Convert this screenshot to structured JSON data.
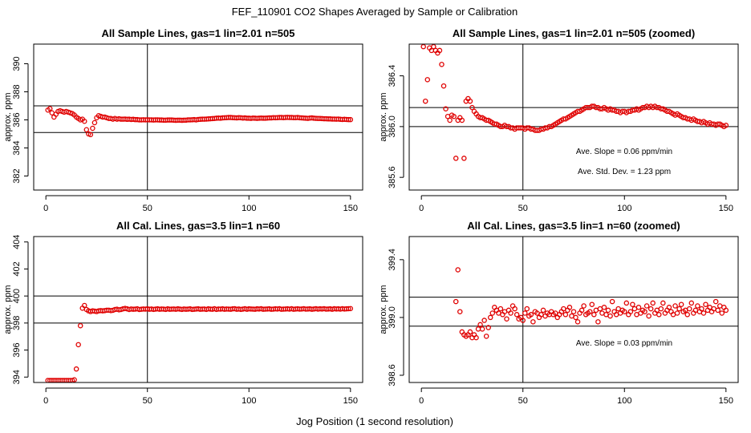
{
  "figure": {
    "title": "FEF_110901  CO2 Shapes Averaged by Sample or Calibration",
    "xlabel": "Jog Position (1 second resolution)"
  },
  "colors": {
    "points": "#e00000",
    "axis": "#000000"
  },
  "chart_data": [
    {
      "type": "scatter",
      "title": "All Sample Lines, gas=1 lin=2.01 n=505",
      "ylabel": "approx. ppm",
      "xlim": [
        -6,
        156
      ],
      "ylim": [
        381,
        391.4
      ],
      "xticks": [
        0,
        50,
        100,
        150
      ],
      "yticks": [
        382,
        384,
        386,
        388,
        390
      ],
      "xtick_labels": [
        "0",
        "50",
        "100",
        "150"
      ],
      "ytick_labels": [
        "382",
        "384",
        "386",
        "388",
        "390"
      ],
      "hlines": [
        387.0,
        385.1
      ],
      "vline": 50,
      "notes": [],
      "x": [
        1,
        2,
        3,
        4,
        5,
        6,
        7,
        8,
        9,
        10,
        11,
        12,
        13,
        14,
        15,
        16,
        17,
        18,
        19,
        20,
        21,
        22,
        23,
        24,
        25,
        26,
        27,
        28,
        29,
        30,
        31,
        32,
        33,
        34,
        35,
        36,
        37,
        38,
        39,
        40,
        41,
        42,
        43,
        44,
        45,
        46,
        47,
        48,
        49,
        50,
        51,
        52,
        53,
        54,
        55,
        56,
        57,
        58,
        59,
        60,
        61,
        62,
        63,
        64,
        65,
        66,
        67,
        68,
        69,
        70,
        71,
        72,
        73,
        74,
        75,
        76,
        77,
        78,
        79,
        80,
        81,
        82,
        83,
        84,
        85,
        86,
        87,
        88,
        89,
        90,
        91,
        92,
        93,
        94,
        95,
        96,
        97,
        98,
        99,
        100,
        101,
        102,
        103,
        104,
        105,
        106,
        107,
        108,
        109,
        110,
        111,
        112,
        113,
        114,
        115,
        116,
        117,
        118,
        119,
        120,
        121,
        122,
        123,
        124,
        125,
        126,
        127,
        128,
        129,
        130,
        131,
        132,
        133,
        134,
        135,
        136,
        137,
        138,
        139,
        140,
        141,
        142,
        143,
        144,
        145,
        146,
        147,
        148,
        149,
        150
      ],
      "y": [
        386.7,
        386.8,
        386.5,
        386.2,
        386.4,
        386.6,
        386.65,
        386.6,
        386.55,
        386.6,
        386.55,
        386.5,
        386.45,
        386.35,
        386.2,
        386.1,
        386.0,
        386.05,
        385.9,
        385.3,
        385.0,
        384.95,
        385.4,
        385.8,
        386.15,
        386.3,
        386.25,
        386.2,
        386.2,
        386.15,
        386.1,
        386.1,
        386.05,
        386.1,
        386.05,
        386.08,
        386.05,
        386.05,
        386.06,
        386.04,
        386.05,
        386.03,
        386.04,
        386.02,
        386.02,
        386.0,
        386.0,
        386.01,
        386.0,
        386.01,
        386.0,
        386.0,
        385.99,
        386.0,
        386.0,
        385.99,
        385.99,
        385.98,
        385.98,
        385.99,
        385.99,
        385.99,
        385.98,
        385.97,
        385.98,
        385.98,
        385.97,
        385.98,
        385.98,
        386.0,
        386.0,
        386.01,
        386.02,
        386.0,
        386.03,
        386.04,
        386.05,
        386.05,
        386.06,
        386.07,
        386.08,
        386.09,
        386.1,
        386.12,
        386.13,
        386.12,
        386.14,
        386.15,
        386.16,
        386.17,
        386.17,
        386.16,
        386.15,
        386.14,
        386.16,
        386.15,
        386.13,
        386.14,
        386.12,
        386.12,
        386.11,
        386.13,
        386.12,
        386.11,
        386.12,
        386.13,
        386.12,
        386.12,
        386.13,
        386.14,
        386.14,
        386.16,
        386.15,
        386.16,
        386.17,
        386.17,
        386.16,
        386.17,
        386.18,
        386.17,
        386.17,
        386.16,
        386.16,
        386.17,
        386.15,
        386.14,
        386.13,
        386.12,
        386.11,
        386.13,
        386.14,
        386.12,
        386.11,
        386.1,
        386.1,
        386.09,
        386.08,
        386.08,
        386.07,
        386.07,
        386.06,
        386.06,
        386.05,
        386.06,
        386.04,
        386.03,
        386.04,
        386.03,
        386.02,
        386.02
      ]
    },
    {
      "type": "scatter",
      "title": "All Sample Lines, gas=1 lin=2.01 n=505 (zoomed)",
      "ylabel": "approx. ppm",
      "xlim": [
        -6,
        156
      ],
      "ylim": [
        385.5,
        386.65
      ],
      "xticks": [
        0,
        50,
        100,
        150
      ],
      "yticks": [
        385.6,
        386.0,
        386.4
      ],
      "xtick_labels": [
        "0",
        "50",
        "100",
        "150"
      ],
      "ytick_labels": [
        "385.6",
        "386.0",
        "386.4"
      ],
      "hlines": [
        386.15,
        386.0
      ],
      "vline": 50,
      "notes": [
        "Ave. Slope =  0.06  ppm/min",
        "Ave. Std. Dev. =  1.23  ppm"
      ],
      "x": [
        1,
        2,
        3,
        4,
        5,
        6,
        7,
        8,
        9,
        10,
        11,
        12,
        13,
        14,
        15,
        16,
        17,
        18,
        19,
        20,
        21,
        22,
        23,
        24,
        25,
        26,
        27,
        28,
        29,
        30,
        31,
        32,
        33,
        34,
        35,
        36,
        37,
        38,
        39,
        40,
        41,
        42,
        43,
        44,
        45,
        46,
        47,
        48,
        49,
        50,
        51,
        52,
        53,
        54,
        55,
        56,
        57,
        58,
        59,
        60,
        61,
        62,
        63,
        64,
        65,
        66,
        67,
        68,
        69,
        70,
        71,
        72,
        73,
        74,
        75,
        76,
        77,
        78,
        79,
        80,
        81,
        82,
        83,
        84,
        85,
        86,
        87,
        88,
        89,
        90,
        91,
        92,
        93,
        94,
        95,
        96,
        97,
        98,
        99,
        100,
        101,
        102,
        103,
        104,
        105,
        106,
        107,
        108,
        109,
        110,
        111,
        112,
        113,
        114,
        115,
        116,
        117,
        118,
        119,
        120,
        121,
        122,
        123,
        124,
        125,
        126,
        127,
        128,
        129,
        130,
        131,
        132,
        133,
        134,
        135,
        136,
        137,
        138,
        139,
        140,
        141,
        142,
        143,
        144,
        145,
        146,
        147,
        148,
        149,
        150
      ],
      "y": [
        386.63,
        386.2,
        386.37,
        386.62,
        386.6,
        386.63,
        386.6,
        386.58,
        386.6,
        386.49,
        386.32,
        386.14,
        386.08,
        386.05,
        386.09,
        386.08,
        385.75,
        386.05,
        386.07,
        386.05,
        385.75,
        386.2,
        386.22,
        386.2,
        386.15,
        386.12,
        386.1,
        386.08,
        386.07,
        386.07,
        386.06,
        386.05,
        386.05,
        386.04,
        386.03,
        386.02,
        386.02,
        386.01,
        386.0,
        386.0,
        386.01,
        386.0,
        386.0,
        385.99,
        385.99,
        385.98,
        385.99,
        385.99,
        385.99,
        385.99,
        385.98,
        385.99,
        385.99,
        385.98,
        385.98,
        385.97,
        385.97,
        385.97,
        385.98,
        385.98,
        385.99,
        385.99,
        386.0,
        386.0,
        386.01,
        386.02,
        386.03,
        386.04,
        386.05,
        386.06,
        386.06,
        386.07,
        386.08,
        386.09,
        386.1,
        386.11,
        386.12,
        386.12,
        386.13,
        386.14,
        386.15,
        386.15,
        386.15,
        386.16,
        386.16,
        386.15,
        386.15,
        386.14,
        386.14,
        386.15,
        386.14,
        386.13,
        386.14,
        386.13,
        386.13,
        386.12,
        386.12,
        386.11,
        386.12,
        386.12,
        386.11,
        386.12,
        386.12,
        386.13,
        386.13,
        386.14,
        386.13,
        386.14,
        386.15,
        386.15,
        386.16,
        386.15,
        386.16,
        386.15,
        386.16,
        386.15,
        386.15,
        386.14,
        386.14,
        386.13,
        386.12,
        386.12,
        386.11,
        386.1,
        386.09,
        386.1,
        386.09,
        386.08,
        386.07,
        386.07,
        386.06,
        386.06,
        386.05,
        386.06,
        386.05,
        386.04,
        386.04,
        386.03,
        386.04,
        386.03,
        386.02,
        386.03,
        386.02,
        386.02,
        386.01,
        386.02,
        386.02,
        386.01,
        386.0,
        386.01
      ]
    },
    {
      "type": "scatter",
      "title": "All Cal. Lines, gas=3.5 lin=1 n=60",
      "ylabel": "approx. ppm",
      "xlim": [
        -6,
        156
      ],
      "ylim": [
        393.6,
        404.4
      ],
      "xticks": [
        0,
        50,
        100,
        150
      ],
      "yticks": [
        394,
        396,
        398,
        400,
        402,
        404
      ],
      "xtick_labels": [
        "0",
        "50",
        "100",
        "150"
      ],
      "ytick_labels": [
        "394",
        "396",
        "398",
        "400",
        "402",
        "404"
      ],
      "hlines": [
        400.0,
        398.0
      ],
      "vline": 50,
      "notes": [],
      "x": [
        1,
        2,
        3,
        4,
        5,
        6,
        7,
        8,
        9,
        10,
        11,
        12,
        13,
        14,
        15,
        16,
        17,
        18,
        19,
        20,
        21,
        22,
        23,
        24,
        25,
        26,
        27,
        28,
        29,
        30,
        31,
        32,
        33,
        34,
        35,
        36,
        37,
        38,
        39,
        40,
        41,
        42,
        43,
        44,
        45,
        46,
        47,
        48,
        49,
        50,
        51,
        52,
        53,
        54,
        55,
        56,
        57,
        58,
        59,
        60,
        61,
        62,
        63,
        64,
        65,
        66,
        67,
        68,
        69,
        70,
        71,
        72,
        73,
        74,
        75,
        76,
        77,
        78,
        79,
        80,
        81,
        82,
        83,
        84,
        85,
        86,
        87,
        88,
        89,
        90,
        91,
        92,
        93,
        94,
        95,
        96,
        97,
        98,
        99,
        100,
        101,
        102,
        103,
        104,
        105,
        106,
        107,
        108,
        109,
        110,
        111,
        112,
        113,
        114,
        115,
        116,
        117,
        118,
        119,
        120,
        121,
        122,
        123,
        124,
        125,
        126,
        127,
        128,
        129,
        130,
        131,
        132,
        133,
        134,
        135,
        136,
        137,
        138,
        139,
        140,
        141,
        142,
        143,
        144,
        145,
        146,
        147,
        148,
        149,
        150
      ],
      "y": [
        393.75,
        393.75,
        393.75,
        393.75,
        393.75,
        393.75,
        393.75,
        393.75,
        393.75,
        393.75,
        393.75,
        393.75,
        393.75,
        393.8,
        394.6,
        396.4,
        397.8,
        399.1,
        399.3,
        399.0,
        398.9,
        398.85,
        398.9,
        398.88,
        398.85,
        398.9,
        398.92,
        398.9,
        398.92,
        398.95,
        398.95,
        398.92,
        398.94,
        399.0,
        399.02,
        398.98,
        399.0,
        399.05,
        399.08,
        399.05,
        399.0,
        399.04,
        399.02,
        399.03,
        399.05,
        399.0,
        399.02,
        399.04,
        399.03,
        399.05,
        399.02,
        399.04,
        399.01,
        399.03,
        399.05,
        399.02,
        399.04,
        399.03,
        399.01,
        399.05,
        399.02,
        399.03,
        399.04,
        399.02,
        399.05,
        399.03,
        399.01,
        399.04,
        399.02,
        399.03,
        399.05,
        399.01,
        399.02,
        399.04,
        399.05,
        399.02,
        399.03,
        399.04,
        399.01,
        399.05,
        399.03,
        399.02,
        399.06,
        399.01,
        399.04,
        399.03,
        399.05,
        399.02,
        399.04,
        399.03,
        399.02,
        399.05,
        399.06,
        399.02,
        399.04,
        399.01,
        399.03,
        399.06,
        399.02,
        399.05,
        399.04,
        399.03,
        399.02,
        399.05,
        399.04,
        399.06,
        399.02,
        399.03,
        399.04,
        399.05,
        399.02,
        399.03,
        399.05,
        399.04,
        399.06,
        399.02,
        399.03,
        399.04,
        399.05,
        399.03,
        399.06,
        399.02,
        399.04,
        399.05,
        399.03,
        399.04,
        399.06,
        399.03,
        399.04,
        399.05,
        399.02,
        399.04,
        399.06,
        399.03,
        399.05,
        399.04,
        399.06,
        399.03,
        399.04,
        399.05,
        399.02,
        399.06,
        399.04,
        399.05,
        399.03,
        399.06,
        399.04,
        399.05,
        399.06,
        399.07
      ]
    },
    {
      "type": "scatter",
      "title": "All Cal. Lines, gas=3.5 lin=1 n=60 (zoomed)",
      "ylabel": "approx. ppm",
      "xlim": [
        -6,
        156
      ],
      "ylim": [
        398.55,
        399.56
      ],
      "xticks": [
        0,
        50,
        100,
        150
      ],
      "yticks": [
        398.6,
        399.0,
        399.4
      ],
      "xtick_labels": [
        "0",
        "50",
        "100",
        "150"
      ],
      "ytick_labels": [
        "398.6",
        "399.0",
        "399.4"
      ],
      "hlines": [
        399.14,
        398.94
      ],
      "vline": 50,
      "notes": [
        "Ave. Slope =  0.03  ppm/min"
      ],
      "x": [
        17,
        18,
        19,
        20,
        21,
        22,
        23,
        24,
        25,
        26,
        27,
        28,
        29,
        30,
        31,
        32,
        33,
        34,
        35,
        36,
        37,
        38,
        39,
        40,
        41,
        42,
        43,
        44,
        45,
        46,
        47,
        48,
        49,
        50,
        51,
        52,
        53,
        54,
        55,
        56,
        57,
        58,
        59,
        60,
        61,
        62,
        63,
        64,
        65,
        66,
        67,
        68,
        69,
        70,
        71,
        72,
        73,
        74,
        75,
        76,
        77,
        78,
        79,
        80,
        81,
        82,
        83,
        84,
        85,
        86,
        87,
        88,
        89,
        90,
        91,
        92,
        93,
        94,
        95,
        96,
        97,
        98,
        99,
        100,
        101,
        102,
        103,
        104,
        105,
        106,
        107,
        108,
        109,
        110,
        111,
        112,
        113,
        114,
        115,
        116,
        117,
        118,
        119,
        120,
        121,
        122,
        123,
        124,
        125,
        126,
        127,
        128,
        129,
        130,
        131,
        132,
        133,
        134,
        135,
        136,
        137,
        138,
        139,
        140,
        141,
        142,
        143,
        144,
        145,
        146,
        147,
        148,
        149,
        150
      ],
      "y": [
        399.11,
        399.33,
        399.04,
        398.9,
        398.88,
        398.87,
        398.88,
        398.9,
        398.86,
        398.88,
        398.86,
        398.92,
        398.95,
        398.92,
        398.98,
        398.87,
        398.93,
        399.0,
        399.03,
        399.07,
        399.05,
        399.03,
        399.06,
        399.02,
        399.04,
        398.99,
        399.05,
        399.03,
        399.08,
        399.06,
        399.02,
        398.99,
        399.0,
        398.98,
        399.03,
        399.06,
        399.01,
        399.02,
        398.97,
        399.04,
        399.03,
        399.0,
        399.02,
        399.05,
        399.01,
        399.03,
        399.02,
        399.04,
        399.02,
        399.03,
        399.0,
        399.02,
        399.04,
        399.06,
        399.02,
        399.05,
        399.07,
        399.01,
        399.04,
        399.0,
        398.97,
        399.03,
        399.05,
        399.08,
        399.02,
        399.03,
        399.04,
        399.09,
        399.02,
        399.05,
        398.97,
        399.06,
        399.03,
        399.07,
        399.02,
        399.05,
        399.01,
        399.11,
        399.04,
        399.02,
        399.06,
        399.03,
        399.05,
        399.04,
        399.1,
        399.02,
        399.04,
        399.09,
        399.06,
        399.02,
        399.07,
        399.03,
        399.05,
        399.04,
        399.08,
        399.01,
        399.06,
        399.1,
        399.03,
        399.05,
        399.02,
        399.06,
        399.1,
        399.03,
        399.05,
        399.07,
        399.04,
        399.02,
        399.08,
        399.03,
        399.06,
        399.09,
        399.04,
        399.05,
        399.02,
        399.06,
        399.1,
        399.03,
        399.05,
        399.08,
        399.04,
        399.06,
        399.03,
        399.09,
        399.05,
        399.07,
        399.04,
        399.06,
        399.11,
        399.05,
        399.08,
        399.03,
        399.07,
        399.05
      ]
    }
  ]
}
